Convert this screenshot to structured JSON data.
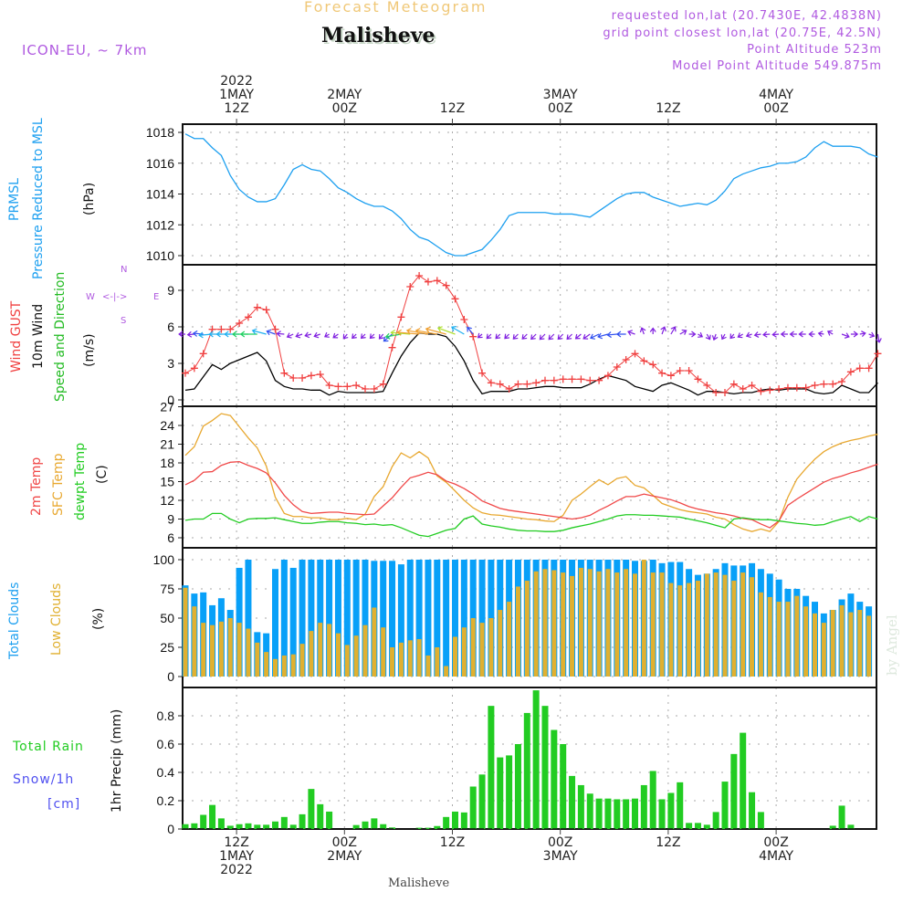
{
  "header": {
    "subtitle": "Forecast Meteogram",
    "location": "Malisheve",
    "model": "ICON-EU, ~ 7km",
    "requested": "requested lon,lat (20.7430E, 42.4838N)",
    "gridpoint": "grid point closest lon,lat (20.75E, 42.5N)",
    "altitude": "Point Altitude 523m",
    "model_altitude": "Model Point Altitude 549.875m"
  },
  "footer": {
    "location": "Malisheve",
    "credit": "by Angel"
  },
  "time_axis": {
    "ticks": [
      {
        "hour": 6,
        "top": [
          "2022",
          "1MAY",
          "12Z"
        ],
        "bottom": [
          "12Z",
          "1MAY",
          "2022"
        ]
      },
      {
        "hour": 18,
        "top": [
          "2MAY",
          "00Z"
        ],
        "bottom": [
          "00Z",
          "2MAY"
        ]
      },
      {
        "hour": 30,
        "top": [
          "12Z"
        ],
        "bottom": [
          "12Z"
        ]
      },
      {
        "hour": 42,
        "top": [
          "3MAY",
          "00Z"
        ],
        "bottom": [
          "00Z",
          "3MAY"
        ]
      },
      {
        "hour": 54,
        "top": [
          "12Z"
        ],
        "bottom": [
          "12Z"
        ]
      },
      {
        "hour": 66,
        "top": [
          "4MAY",
          "00Z"
        ],
        "bottom": [
          "00Z",
          "4MAY"
        ]
      }
    ],
    "start": "2022-05-01 06Z",
    "step_hours": 1,
    "n_hours": 78
  },
  "colors": {
    "pressure": "#1ea0f0",
    "gust": "#f04040",
    "wind": "#000000",
    "temp2m": "#f04848",
    "sfctemp": "#e8a830",
    "dewpt": "#22cc22",
    "totalclouds": "#08a0f8",
    "lowclouds": "#e0b030",
    "rain": "#22cc22",
    "snow": "#5050f0",
    "label_purple": "#b05ae0"
  },
  "panel_labels": {
    "pressure": [
      "PRMSL",
      "Pressure Reduced to MSL",
      "(hPa)"
    ],
    "wind": [
      "Wind GUST",
      "10m Wind",
      "Speed and Direction",
      "(m/s)"
    ],
    "compass": {
      "n": "N",
      "s": "S",
      "w": "W",
      "e": "E",
      "arrow": "<-|->"
    },
    "temp": [
      "2m Temp",
      "SFC Temp",
      "dewpt Temp",
      "(C)"
    ],
    "clouds": [
      "Total Clouds",
      "Low Clouds",
      "(%)"
    ],
    "precip": [
      "Total  Rain",
      "Snow/1h",
      "[cm]",
      "1hr Precip (mm)"
    ]
  },
  "chart_data": [
    {
      "type": "line",
      "title": "PRMSL Pressure Reduced to MSL",
      "ylabel": "(hPa)",
      "ylim": [
        1009.5,
        1018.5
      ],
      "yticks": [
        1010,
        1012,
        1014,
        1016,
        1018
      ],
      "series": [
        {
          "name": "PRMSL",
          "values": [
            1017.9,
            1017.6,
            1017.6,
            1017.0,
            1016.5,
            1015.2,
            1014.3,
            1013.8,
            1013.5,
            1013.5,
            1013.7,
            1014.6,
            1015.6,
            1015.9,
            1015.6,
            1015.5,
            1015.0,
            1014.4,
            1014.1,
            1013.7,
            1013.4,
            1013.2,
            1013.2,
            1012.9,
            1012.4,
            1011.7,
            1011.2,
            1011.0,
            1010.6,
            1010.2,
            1010.0,
            1010.0,
            1010.2,
            1010.4,
            1011.0,
            1011.7,
            1012.6,
            1012.8,
            1012.8,
            1012.8,
            1012.8,
            1012.7,
            1012.7,
            1012.7,
            1012.6,
            1012.5,
            1012.9,
            1013.3,
            1013.7,
            1014.0,
            1014.1,
            1014.1,
            1013.8,
            1013.6,
            1013.4,
            1013.2,
            1013.3,
            1013.4,
            1013.3,
            1013.6,
            1014.2,
            1015.0,
            1015.3,
            1015.5,
            1015.7,
            1015.8,
            1016.0,
            1016.0,
            1016.1,
            1016.4,
            1017.0,
            1017.4,
            1017.1,
            1017.1,
            1017.1,
            1017.0,
            1016.6,
            1016.4
          ]
        }
      ]
    },
    {
      "type": "line",
      "title": "Wind GUST / 10m Wind Speed and Direction",
      "ylabel": "(m/s)",
      "ylim": [
        -0.3,
        11
      ],
      "yticks": [
        0,
        3,
        6,
        9
      ],
      "series": [
        {
          "name": "Wind GUST",
          "values": [
            2.2,
            2.6,
            3.8,
            5.8,
            5.8,
            5.8,
            6.3,
            6.8,
            7.6,
            7.4,
            5.8,
            2.2,
            1.8,
            1.8,
            2.0,
            2.1,
            1.2,
            1.1,
            1.1,
            1.2,
            0.9,
            0.9,
            1.3,
            4.3,
            6.8,
            9.3,
            10.2,
            9.7,
            9.8,
            9.4,
            8.3,
            6.6,
            5.2,
            2.2,
            1.4,
            1.3,
            0.9,
            1.3,
            1.3,
            1.4,
            1.6,
            1.6,
            1.7,
            1.7,
            1.7,
            1.6,
            1.6,
            2.0,
            2.7,
            3.3,
            3.8,
            3.2,
            2.9,
            2.2,
            2.0,
            2.4,
            2.4,
            1.7,
            1.2,
            0.6,
            0.6,
            1.3,
            0.9,
            1.2,
            0.7,
            0.8,
            0.9,
            1.0,
            1.0,
            1.0,
            1.2,
            1.3,
            1.3,
            1.5,
            2.3,
            2.6,
            2.6,
            3.8
          ]
        },
        {
          "name": "10m Wind",
          "values": [
            0.8,
            0.9,
            1.9,
            2.9,
            2.5,
            3.0,
            3.3,
            3.6,
            3.9,
            3.2,
            1.6,
            1.1,
            0.9,
            0.9,
            0.8,
            0.8,
            0.4,
            0.7,
            0.6,
            0.6,
            0.6,
            0.6,
            0.7,
            2.2,
            3.6,
            4.7,
            5.5,
            5.4,
            5.4,
            5.2,
            4.4,
            3.2,
            1.6,
            0.5,
            0.7,
            0.7,
            0.7,
            0.9,
            0.9,
            1.0,
            1.1,
            1.1,
            1.0,
            1.0,
            1.0,
            1.3,
            1.7,
            2.0,
            1.8,
            1.6,
            1.1,
            0.9,
            0.7,
            1.2,
            1.4,
            1.1,
            0.8,
            0.4,
            0.7,
            0.7,
            0.6,
            0.5,
            0.6,
            0.6,
            0.8,
            0.9,
            0.8,
            0.9,
            0.9,
            0.9,
            0.6,
            0.5,
            0.6,
            1.2,
            0.9,
            0.6,
            0.6,
            1.4
          ]
        },
        {
          "name": "Direction arrows (to, deg from north)",
          "values": [
            270,
            265,
            275,
            265,
            270,
            270,
            270,
            270,
            270,
            285,
            290,
            275,
            245,
            250,
            255,
            250,
            240,
            235,
            220,
            225,
            225,
            225,
            220,
            230,
            260,
            275,
            275,
            280,
            280,
            285,
            290,
            300,
            320,
            230,
            225,
            225,
            225,
            225,
            225,
            225,
            225,
            225,
            225,
            225,
            230,
            235,
            245,
            255,
            265,
            270,
            290,
            340,
            0,
            20,
            30,
            60,
            90,
            120,
            150,
            200,
            210,
            220,
            240,
            250,
            260,
            265,
            265,
            270,
            270,
            270,
            270,
            280,
            300,
            110,
            90,
            80,
            110,
            170
          ]
        }
      ]
    },
    {
      "type": "line",
      "title": "2m Temp / SFC Temp / dewpt Temp",
      "ylabel": "(C)",
      "ylim": [
        5,
        27.2
      ],
      "yticks": [
        6,
        9,
        12,
        15,
        18,
        21,
        24,
        27
      ],
      "series": [
        {
          "name": "2m Temp",
          "values": [
            14.5,
            15.2,
            16.5,
            16.6,
            17.6,
            18.1,
            18.2,
            17.6,
            17.1,
            16.4,
            14.8,
            12.8,
            11.3,
            10.2,
            9.9,
            10.0,
            10.1,
            10.1,
            9.9,
            9.8,
            9.7,
            9.8,
            11.1,
            12.4,
            14.1,
            15.6,
            16.0,
            16.5,
            16.1,
            15.1,
            14.6,
            13.9,
            13.0,
            11.9,
            11.3,
            10.7,
            10.4,
            10.2,
            10.0,
            9.8,
            9.6,
            9.4,
            9.2,
            9.0,
            9.2,
            9.6,
            10.4,
            11.1,
            11.9,
            12.6,
            12.6,
            13.0,
            12.7,
            12.4,
            12.1,
            11.6,
            11.0,
            10.6,
            10.3,
            10.0,
            9.8,
            9.5,
            9.1,
            8.9,
            8.2,
            7.6,
            8.7,
            11.2,
            12.2,
            13.1,
            14.0,
            14.9,
            15.5,
            15.9,
            16.4,
            16.8,
            17.3,
            17.8
          ]
        },
        {
          "name": "SFC Temp",
          "values": [
            19.2,
            20.6,
            23.9,
            24.8,
            25.9,
            25.6,
            23.8,
            22.0,
            20.4,
            17.5,
            12.5,
            9.9,
            9.4,
            9.4,
            9.2,
            9.2,
            8.9,
            8.9,
            9.1,
            8.9,
            9.8,
            12.6,
            14.2,
            17.4,
            19.6,
            18.8,
            19.8,
            18.8,
            15.9,
            14.9,
            13.5,
            12.0,
            10.8,
            10.0,
            9.7,
            9.6,
            9.4,
            9.2,
            9.0,
            8.9,
            8.7,
            8.6,
            9.6,
            12.0,
            13.0,
            14.2,
            15.3,
            14.5,
            15.5,
            15.8,
            14.4,
            14.0,
            12.8,
            11.5,
            11.0,
            10.5,
            10.2,
            10.0,
            9.8,
            9.3,
            9.0,
            8.1,
            7.4,
            7.0,
            7.4,
            7.0,
            8.6,
            12.5,
            15.4,
            17.1,
            18.6,
            19.8,
            20.6,
            21.2,
            21.6,
            21.9,
            22.3,
            22.6
          ]
        },
        {
          "name": "dewpt Temp",
          "values": [
            8.8,
            9.0,
            9.0,
            9.9,
            9.9,
            9.0,
            8.4,
            9.0,
            9.1,
            9.1,
            9.2,
            8.9,
            8.6,
            8.3,
            8.3,
            8.5,
            8.6,
            8.6,
            8.4,
            8.3,
            8.1,
            8.2,
            8.0,
            8.1,
            7.6,
            7.0,
            6.4,
            6.2,
            6.7,
            7.2,
            7.5,
            9.0,
            9.5,
            8.2,
            7.9,
            7.7,
            7.4,
            7.2,
            7.1,
            7.1,
            7.0,
            7.0,
            7.2,
            7.6,
            7.9,
            8.2,
            8.6,
            9.0,
            9.5,
            9.7,
            9.7,
            9.6,
            9.6,
            9.5,
            9.4,
            9.3,
            9.0,
            8.7,
            8.4,
            8.0,
            7.6,
            9.0,
            9.2,
            9.0,
            8.9,
            8.9,
            8.7,
            8.5,
            8.3,
            8.2,
            8.0,
            8.1,
            8.6,
            9.0,
            9.4,
            8.6,
            9.4,
            9.0
          ]
        }
      ]
    },
    {
      "type": "bar",
      "title": "Total Clouds / Low Clouds",
      "ylabel": "(%)",
      "ylim": [
        0,
        100
      ],
      "yticks": [
        0,
        25,
        50,
        75,
        100
      ],
      "series": [
        {
          "name": "Total Clouds",
          "values": [
            78,
            71,
            72,
            61,
            67,
            57,
            93,
            100,
            38,
            37,
            92,
            100,
            93,
            100,
            100,
            100,
            100,
            100,
            100,
            100,
            100,
            99,
            99,
            99,
            96,
            100,
            100,
            100,
            100,
            100,
            100,
            100,
            100,
            100,
            100,
            100,
            100,
            100,
            100,
            100,
            100,
            100,
            100,
            100,
            100,
            100,
            100,
            100,
            100,
            100,
            99,
            99,
            100,
            97,
            98,
            98,
            92,
            87,
            88,
            92,
            97,
            95,
            95,
            97,
            92,
            88,
            83,
            75,
            75,
            69,
            64,
            54,
            57,
            66,
            71,
            64,
            60,
            78
          ]
        },
        {
          "name": "Low Clouds",
          "values": [
            76,
            60,
            46,
            44,
            47,
            50,
            46,
            41,
            29,
            21,
            15,
            18,
            19,
            28,
            39,
            46,
            45,
            37,
            27,
            35,
            44,
            59,
            42,
            25,
            29,
            31,
            32,
            18,
            25,
            9,
            34,
            42,
            50,
            46,
            50,
            57,
            64,
            77,
            82,
            90,
            92,
            91,
            89,
            86,
            93,
            92,
            90,
            92,
            89,
            92,
            88,
            100,
            89,
            89,
            80,
            78,
            80,
            82,
            88,
            89,
            87,
            82,
            89,
            85,
            72,
            68,
            64,
            64,
            69,
            60,
            54,
            46,
            57,
            61,
            55,
            57,
            52,
            52
          ]
        }
      ]
    },
    {
      "type": "bar",
      "title": "Total Rain / Snow 1h",
      "ylabel": "1hr Precip (mm)",
      "ylim": [
        0,
        0.97
      ],
      "yticks": [
        0,
        0.2,
        0.4,
        0.6,
        0.8
      ],
      "series": [
        {
          "name": "Total Rain",
          "values": [
            0.034,
            0.04,
            0.1,
            0.17,
            0.075,
            0.023,
            0.034,
            0.04,
            0.03,
            0.03,
            0.053,
            0.085,
            0.03,
            0.104,
            0.283,
            0.175,
            0.123,
            0,
            0,
            0.028,
            0.053,
            0.075,
            0.034,
            0.011,
            0,
            0,
            0.009,
            0.009,
            0.021,
            0.085,
            0.123,
            0.117,
            0.3,
            0.385,
            0.87,
            0.506,
            0.52,
            0.6,
            0.82,
            0.98,
            0.87,
            0.7,
            0.6,
            0.375,
            0.31,
            0.25,
            0.215,
            0.215,
            0.21,
            0.21,
            0.215,
            0.31,
            0.41,
            0.21,
            0.255,
            0.33,
            0.043,
            0.043,
            0.03,
            0.12,
            0.335,
            0.53,
            0.68,
            0.26,
            0.12,
            0,
            0,
            0,
            0,
            0,
            0,
            0,
            0.023,
            0.165,
            0.03,
            0,
            0,
            0.03
          ]
        },
        {
          "name": "Snow/1h",
          "values": []
        }
      ]
    }
  ]
}
